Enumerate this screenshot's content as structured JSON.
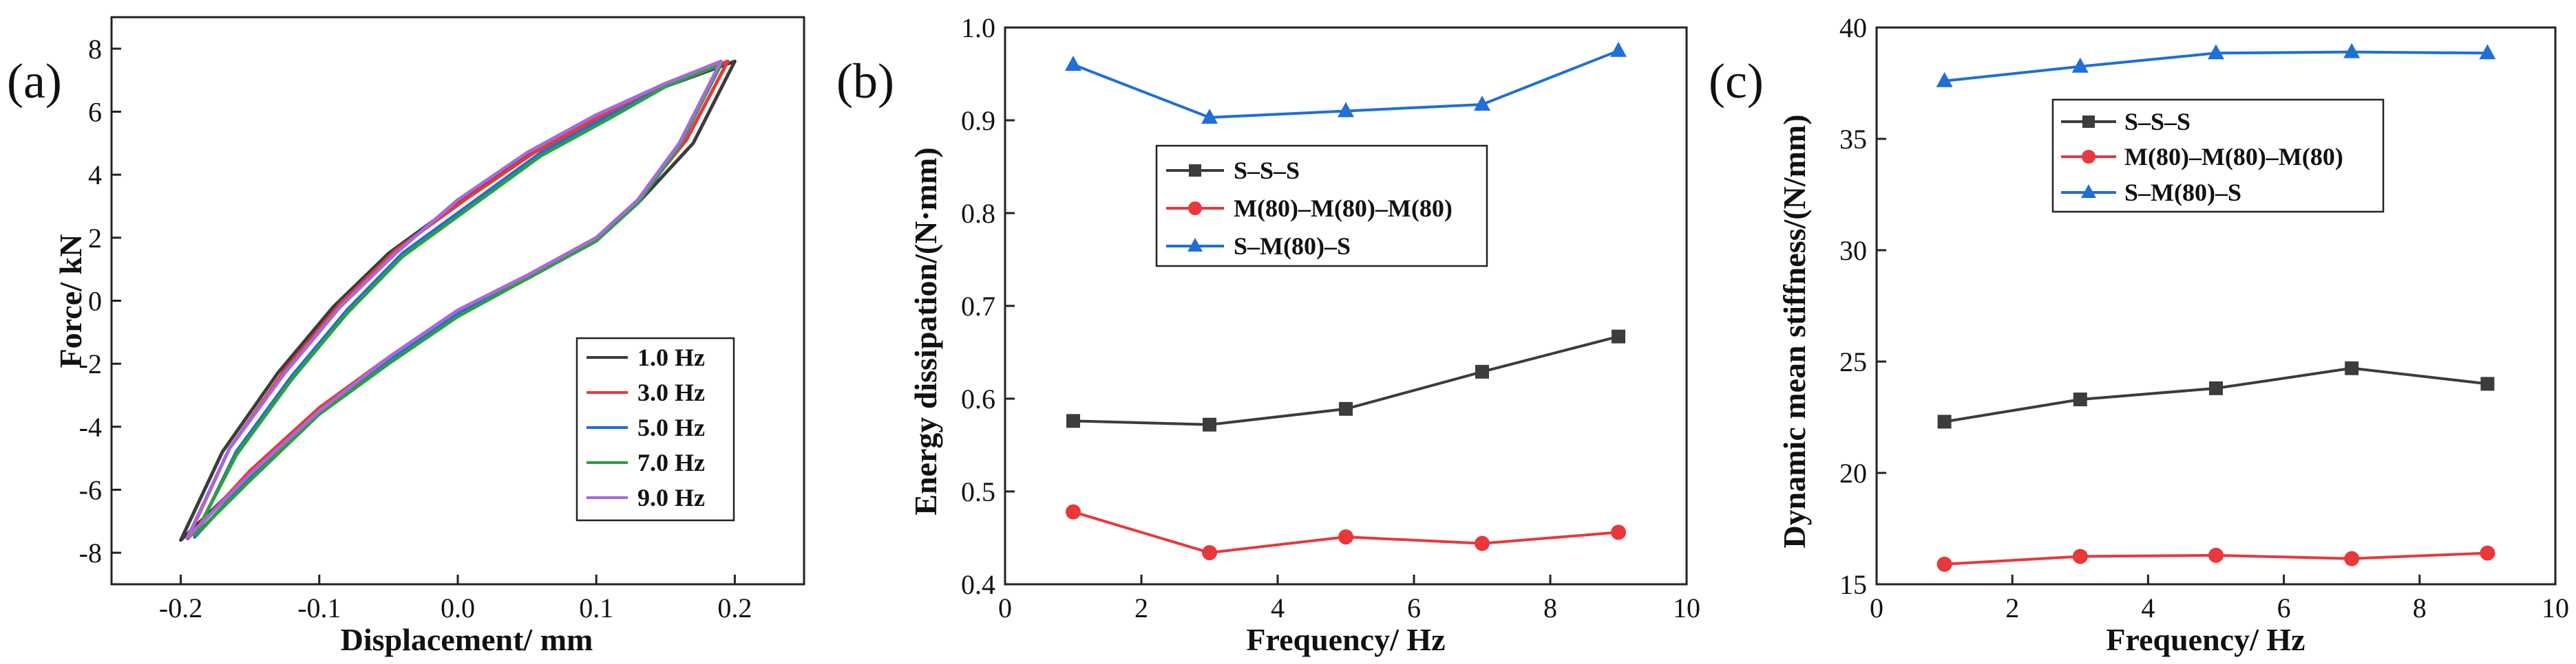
{
  "colors": {
    "black": "#3c3c3c",
    "red": "#e8383b",
    "blue": "#1f6fd6",
    "green": "#2e9e3f",
    "purple": "#a66ad8"
  },
  "chart_data": [
    {
      "panel_label": "(a)",
      "type": "line",
      "title": "",
      "xlabel": "Displacement/ mm",
      "ylabel": "Force/ kN",
      "xlim": [
        -0.25,
        0.25
      ],
      "ylim": [
        -9,
        9
      ],
      "xticks": [
        -0.2,
        -0.1,
        0.0,
        0.1,
        0.2
      ],
      "xtick_labels": [
        "-0.2",
        "-0.1",
        "0.0",
        "0.1",
        "0.2"
      ],
      "yticks": [
        -8,
        -6,
        -4,
        -2,
        0,
        2,
        4,
        6,
        8
      ],
      "ytick_labels": [
        "-8",
        "-6",
        "-4",
        "-2",
        "0",
        "2",
        "4",
        "6",
        "8"
      ],
      "legend_position": "lower-right",
      "series": [
        {
          "name": "1.0 Hz",
          "color_key": "black",
          "upper_x": [
            -0.2,
            -0.17,
            -0.13,
            -0.09,
            -0.05,
            0.0,
            0.05,
            0.1,
            0.15,
            0.2
          ],
          "upper_y": [
            -7.6,
            -4.8,
            -2.3,
            -0.2,
            1.5,
            3.1,
            4.6,
            5.8,
            6.8,
            7.6
          ],
          "lower_x": [
            0.2,
            0.17,
            0.13,
            0.1,
            0.05,
            0.0,
            -0.05,
            -0.1,
            -0.15,
            -0.2
          ],
          "lower_y": [
            7.6,
            5.0,
            3.1,
            1.9,
            0.7,
            -0.4,
            -1.9,
            -3.5,
            -5.5,
            -7.6
          ]
        },
        {
          "name": "3.0 Hz",
          "color_key": "red",
          "upper_x": [
            -0.195,
            -0.165,
            -0.125,
            -0.085,
            -0.045,
            0.005,
            0.055,
            0.105,
            0.15,
            0.195
          ],
          "upper_y": [
            -7.55,
            -4.7,
            -2.2,
            -0.1,
            1.6,
            3.2,
            4.7,
            5.9,
            6.9,
            7.6
          ],
          "lower_x": [
            0.195,
            0.165,
            0.13,
            0.1,
            0.05,
            0.0,
            -0.05,
            -0.1,
            -0.15,
            -0.195
          ],
          "lower_y": [
            7.6,
            5.1,
            3.2,
            2.0,
            0.8,
            -0.3,
            -1.8,
            -3.4,
            -5.4,
            -7.55
          ]
        },
        {
          "name": "5.0 Hz",
          "color_key": "blue",
          "upper_x": [
            -0.19,
            -0.16,
            -0.12,
            -0.08,
            -0.04,
            0.01,
            0.06,
            0.11,
            0.15,
            0.19
          ],
          "upper_y": [
            -7.5,
            -4.8,
            -2.4,
            -0.3,
            1.5,
            3.1,
            4.7,
            5.9,
            6.8,
            7.55
          ],
          "lower_x": [
            0.19,
            0.16,
            0.13,
            0.1,
            0.05,
            0.0,
            -0.05,
            -0.1,
            -0.15,
            -0.19
          ],
          "lower_y": [
            7.55,
            5.0,
            3.2,
            1.9,
            0.7,
            -0.4,
            -1.9,
            -3.5,
            -5.6,
            -7.5
          ]
        },
        {
          "name": "7.0 Hz",
          "color_key": "green",
          "upper_x": [
            -0.19,
            -0.16,
            -0.12,
            -0.08,
            -0.04,
            0.01,
            0.06,
            0.11,
            0.15,
            0.19
          ],
          "upper_y": [
            -7.45,
            -4.9,
            -2.5,
            -0.4,
            1.4,
            3.0,
            4.6,
            5.8,
            6.8,
            7.5
          ],
          "lower_x": [
            0.19,
            0.16,
            0.13,
            0.1,
            0.05,
            0.0,
            -0.05,
            -0.1,
            -0.15,
            -0.19
          ],
          "lower_y": [
            7.5,
            4.9,
            3.1,
            1.9,
            0.7,
            -0.5,
            -2.0,
            -3.6,
            -5.7,
            -7.45
          ]
        },
        {
          "name": "9.0 Hz",
          "color_key": "purple",
          "upper_x": [
            -0.195,
            -0.165,
            -0.125,
            -0.085,
            -0.045,
            0.0,
            0.05,
            0.1,
            0.15,
            0.19
          ],
          "upper_y": [
            -7.5,
            -4.7,
            -2.3,
            -0.2,
            1.5,
            3.2,
            4.7,
            5.9,
            6.9,
            7.6
          ],
          "lower_x": [
            0.19,
            0.16,
            0.13,
            0.1,
            0.05,
            0.0,
            -0.05,
            -0.1,
            -0.15,
            -0.195
          ],
          "lower_y": [
            7.6,
            5.0,
            3.2,
            2.0,
            0.8,
            -0.3,
            -1.8,
            -3.5,
            -5.5,
            -7.5
          ]
        }
      ]
    },
    {
      "panel_label": "(b)",
      "type": "line",
      "title": "",
      "xlabel": "Frequency/ Hz",
      "ylabel": "Energy dissipation/(N·mm)",
      "xlim": [
        0,
        10
      ],
      "ylim": [
        0.4,
        1.0
      ],
      "xticks": [
        0,
        2,
        4,
        6,
        8,
        10
      ],
      "xtick_labels": [
        "0",
        "2",
        "4",
        "6",
        "8",
        "10"
      ],
      "yticks": [
        0.4,
        0.5,
        0.6,
        0.7,
        0.8,
        0.9,
        1.0
      ],
      "ytick_labels": [
        "0.4",
        "0.5",
        "0.6",
        "0.7",
        "0.8",
        "0.9",
        "1.0"
      ],
      "legend_position": "upper-left-center",
      "x": [
        1,
        3,
        5,
        7,
        9
      ],
      "series": [
        {
          "name": "S–S–S",
          "color_key": "black",
          "marker": "square",
          "values": [
            0.576,
            0.572,
            0.589,
            0.629,
            0.667
          ]
        },
        {
          "name": "M(80)–M(80)–M(80)",
          "color_key": "red",
          "marker": "circle",
          "values": [
            0.478,
            0.434,
            0.451,
            0.444,
            0.456
          ]
        },
        {
          "name": "S–M(80)–S",
          "color_key": "blue",
          "marker": "triangle",
          "values": [
            0.96,
            0.903,
            0.91,
            0.917,
            0.975
          ]
        }
      ]
    },
    {
      "panel_label": "(c)",
      "type": "line",
      "title": "",
      "xlabel": "Frequency/ Hz",
      "ylabel": "Dynamic mean stiffness/(N/mm)",
      "xlim": [
        0,
        10
      ],
      "ylim": [
        15,
        40
      ],
      "xticks": [
        0,
        2,
        4,
        6,
        8,
        10
      ],
      "xtick_labels": [
        "0",
        "2",
        "4",
        "6",
        "8",
        "10"
      ],
      "yticks": [
        15,
        20,
        25,
        30,
        35,
        40
      ],
      "ytick_labels": [
        "15",
        "20",
        "25",
        "30",
        "35",
        "40"
      ],
      "legend_position": "upper-left-center",
      "x": [
        1,
        3,
        5,
        7,
        9
      ],
      "series": [
        {
          "name": "S–S–S",
          "color_key": "black",
          "marker": "square",
          "values": [
            22.3,
            23.3,
            23.8,
            24.7,
            24.0
          ]
        },
        {
          "name": "M(80)–M(80)–M(80)",
          "color_key": "red",
          "marker": "circle",
          "values": [
            15.9,
            16.25,
            16.3,
            16.15,
            16.4
          ]
        },
        {
          "name": "S–M(80)–S",
          "color_key": "blue",
          "marker": "triangle",
          "values": [
            37.6,
            38.25,
            38.85,
            38.9,
            38.85
          ]
        }
      ]
    }
  ]
}
